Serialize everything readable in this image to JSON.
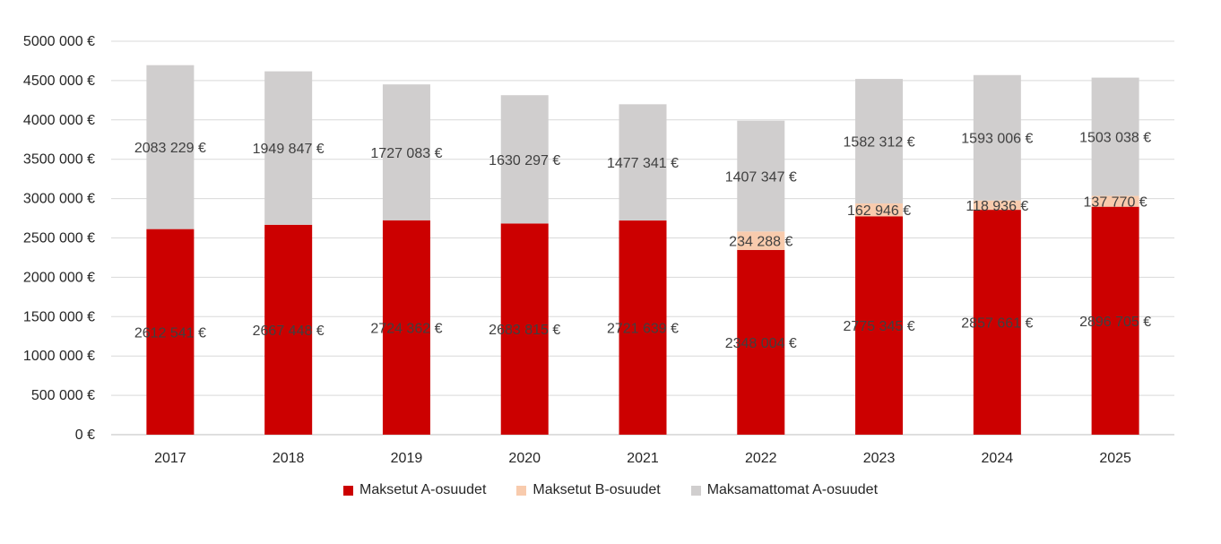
{
  "chart_data": {
    "type": "bar",
    "stacked": true,
    "categories": [
      "2017",
      "2018",
      "2019",
      "2020",
      "2021",
      "2022",
      "2023",
      "2024",
      "2025"
    ],
    "series": [
      {
        "name": "Maksetut A-osuudet",
        "color": "#cc0000",
        "values": [
          2612541,
          2667448,
          2724362,
          2683815,
          2721639,
          2348004,
          2775345,
          2857661,
          2896705
        ],
        "labels": [
          "2612 541 €",
          "2667 448 €",
          "2724 362 €",
          "2683 815 €",
          "2721 639 €",
          "2348 004 €",
          "2775 345 €",
          "2857 661 €",
          "2896 705 €"
        ]
      },
      {
        "name": "Maksetut B-osuudet",
        "color": "#f8cbad",
        "values": [
          0,
          0,
          0,
          0,
          0,
          234288,
          162946,
          118936,
          137770
        ],
        "labels": [
          "",
          "",
          "",
          "",
          "",
          "234 288 €",
          "162 946 €",
          "118 936 €",
          "137 770 €"
        ]
      },
      {
        "name": "Maksamattomat A-osuudet",
        "color": "#d0cece",
        "values": [
          2083229,
          1949847,
          1727083,
          1630297,
          1477341,
          1407347,
          1582312,
          1593006,
          1503038
        ],
        "labels": [
          "2083 229 €",
          "1949 847 €",
          "1727 083 €",
          "1630 297 €",
          "1477 341 €",
          "1407 347 €",
          "1582 312 €",
          "1593 006 €",
          "1503 038 €"
        ]
      }
    ],
    "ylim": [
      0,
      5000000
    ],
    "yticks": [
      0,
      500000,
      1000000,
      1500000,
      2000000,
      2500000,
      3000000,
      3500000,
      4000000,
      4500000,
      5000000
    ],
    "ytick_labels": [
      "0 €",
      "500 000 €",
      "1000 000 €",
      "1500 000 €",
      "2000 000 €",
      "2500 000 €",
      "3000 000 €",
      "3500 000 €",
      "4000 000 €",
      "4500 000 €",
      "5000 000 €"
    ],
    "grid": true,
    "legend_position": "bottom"
  }
}
